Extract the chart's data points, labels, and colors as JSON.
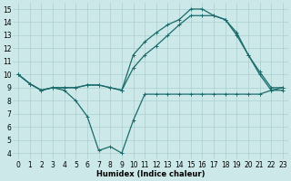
{
  "xlabel": "Humidex (Indice chaleur)",
  "background_color": "#cce8e8",
  "grid_color": "#aacfcf",
  "line_color": "#1a6b6b",
  "xlim": [
    -0.5,
    23.5
  ],
  "ylim": [
    3.5,
    15.5
  ],
  "xticks": [
    0,
    1,
    2,
    3,
    4,
    5,
    6,
    7,
    8,
    9,
    10,
    11,
    12,
    13,
    14,
    15,
    16,
    17,
    18,
    19,
    20,
    21,
    22,
    23
  ],
  "yticks": [
    4,
    5,
    6,
    7,
    8,
    9,
    10,
    11,
    12,
    13,
    14,
    15
  ],
  "line1_x": [
    0,
    1,
    2,
    3,
    4,
    5,
    6,
    7,
    8,
    9,
    10,
    11,
    12,
    13,
    14,
    15,
    16,
    17,
    18,
    19,
    20,
    21,
    22,
    23
  ],
  "line1_y": [
    10,
    9.3,
    8.8,
    9.0,
    8.8,
    8.0,
    6.8,
    4.2,
    4.5,
    4.0,
    6.5,
    8.5,
    8.5,
    8.5,
    8.5,
    8.5,
    8.5,
    8.5,
    8.5,
    8.5,
    8.5,
    8.5,
    8.8,
    8.8
  ],
  "line2_x": [
    0,
    1,
    2,
    3,
    4,
    5,
    6,
    7,
    8,
    9,
    10,
    11,
    12,
    13,
    14,
    15,
    16,
    17,
    18,
    19,
    20,
    21,
    22,
    23
  ],
  "line2_y": [
    10,
    9.3,
    8.8,
    9.0,
    9.0,
    9.0,
    9.2,
    9.2,
    9.0,
    8.8,
    10.5,
    11.5,
    12.2,
    13.0,
    13.8,
    14.5,
    14.5,
    14.5,
    14.2,
    13.0,
    11.5,
    10.2,
    9.0,
    9.0
  ],
  "line3_x": [
    0,
    1,
    2,
    3,
    4,
    5,
    6,
    7,
    8,
    9,
    10,
    11,
    12,
    13,
    14,
    15,
    16,
    17,
    18,
    19,
    20,
    21,
    22,
    23
  ],
  "line3_y": [
    10,
    9.3,
    8.8,
    9.0,
    9.0,
    9.0,
    9.2,
    9.2,
    9.0,
    8.8,
    11.5,
    12.5,
    13.2,
    13.8,
    14.2,
    15.0,
    15.0,
    14.5,
    14.2,
    13.2,
    11.5,
    10.0,
    8.8,
    9.0
  ]
}
